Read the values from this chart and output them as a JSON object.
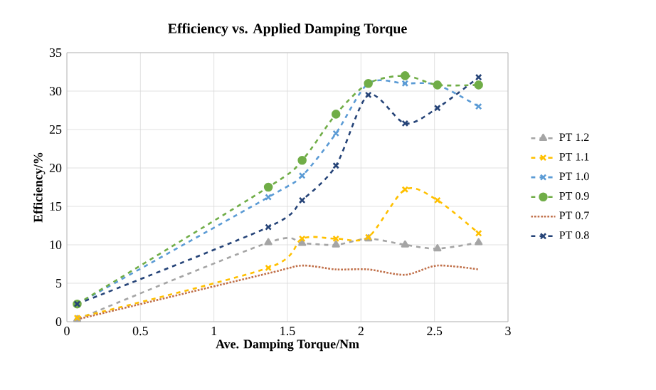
{
  "chart_data": {
    "type": "line",
    "title": "Efficiency vs. Applied Damping Torque",
    "xlabel": "Ave. Damping Torque/Nm",
    "ylabel": "Efficiency/%",
    "x": [
      0.07,
      1.37,
      1.6,
      1.83,
      2.05,
      2.3,
      2.52,
      2.8
    ],
    "xlim": [
      0,
      3
    ],
    "xticks": [
      0,
      0.5,
      1,
      1.5,
      2,
      2.5,
      3
    ],
    "ylim": [
      0,
      35
    ],
    "yticks": [
      0,
      5,
      10,
      15,
      20,
      25,
      30,
      35
    ],
    "grid": true,
    "legend": "right",
    "series": [
      {
        "name": "PT 1.2",
        "color": "#a5a5a5",
        "marker": "triangle",
        "line_style": "dashed",
        "values": [
          0.3,
          10.3,
          10.2,
          10,
          10.8,
          10,
          9.5,
          10.3
        ]
      },
      {
        "name": "PT 1.1",
        "color": "#ffc000",
        "marker": "cross",
        "line_style": "dashed",
        "values": [
          0.5,
          7,
          10.8,
          10.8,
          11,
          17.2,
          15.8,
          11.5
        ]
      },
      {
        "name": "PT 1.0",
        "color": "#5b9bd5",
        "marker": "cross",
        "line_style": "dashed",
        "values": [
          2.3,
          16.2,
          19,
          24.5,
          31,
          31,
          30.8,
          28
        ]
      },
      {
        "name": "PT 0.9",
        "color": "#70ad47",
        "marker": "circle",
        "line_style": "dashed",
        "values": [
          2.3,
          17.5,
          21,
          27,
          31,
          32,
          30.8,
          30.8
        ]
      },
      {
        "name": "PT 0.7",
        "color": "#c0704a",
        "marker": "none",
        "line_style": "dotted",
        "values": [
          0.3,
          6.3,
          7.3,
          6.8,
          6.8,
          6.1,
          7.3,
          6.8
        ]
      },
      {
        "name": "PT 0.8",
        "color": "#264478",
        "marker": "cross",
        "line_style": "dashed",
        "values": [
          2.3,
          12.3,
          15.8,
          20.3,
          29.5,
          25.8,
          27.8,
          31.8
        ]
      }
    ]
  }
}
